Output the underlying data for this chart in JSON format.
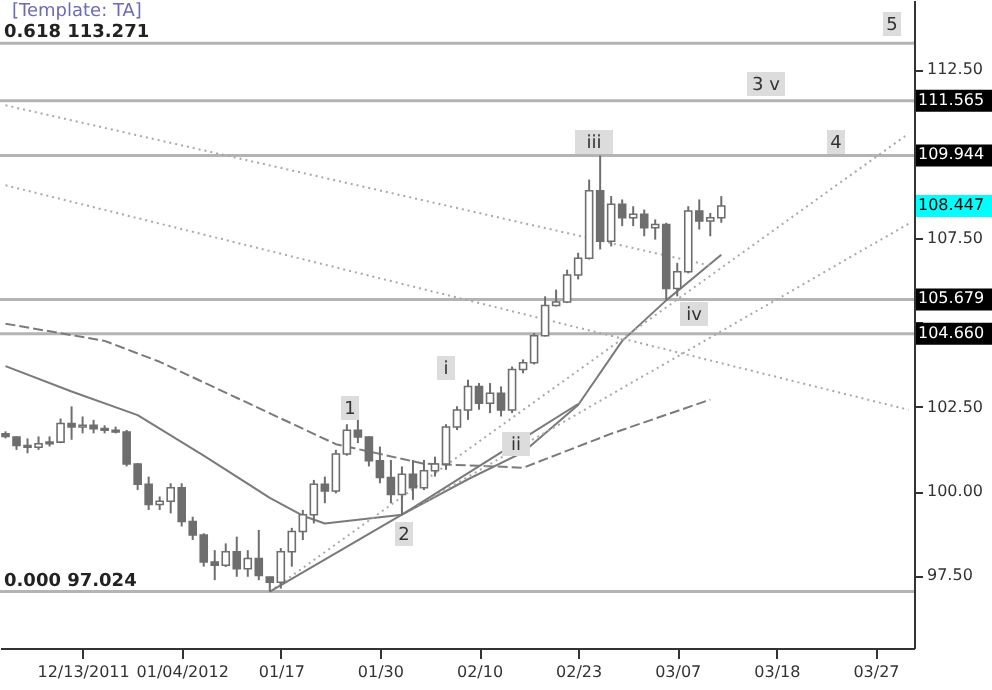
{
  "chart_data": {
    "type": "candlestick",
    "title": "[Template: TA]",
    "categories": [
      null,
      null,
      null,
      null,
      null,
      null,
      null,
      "12/13/2011",
      null,
      null,
      null,
      null,
      null,
      null,
      null,
      null,
      "01/04/2012",
      null,
      null,
      null,
      null,
      null,
      null,
      null,
      null,
      "01/17",
      null,
      null,
      null,
      null,
      null,
      null,
      null,
      null,
      "01/30",
      null,
      null,
      null,
      null,
      null,
      null,
      null,
      null,
      "02/10",
      null,
      null,
      null,
      null,
      null,
      null,
      null,
      null,
      "02/23",
      null,
      null,
      null,
      null,
      null,
      null,
      null,
      null,
      "03/07",
      null,
      null,
      null,
      null,
      null,
      null,
      null,
      null,
      "03/18",
      null,
      null,
      null,
      null,
      null,
      null,
      null,
      null,
      "03/27",
      null,
      null,
      null
    ],
    "ohlc": [
      [
        101.7,
        101.77,
        101.56,
        101.62
      ],
      [
        101.6,
        101.62,
        101.22,
        101.35
      ],
      [
        101.35,
        101.56,
        101.12,
        101.3
      ],
      [
        101.3,
        101.62,
        101.22,
        101.4
      ],
      [
        101.4,
        101.62,
        101.32,
        101.45
      ],
      [
        101.45,
        102.15,
        101.42,
        102.0
      ],
      [
        102.0,
        102.51,
        101.52,
        101.9
      ],
      [
        101.9,
        102.21,
        101.71,
        101.95
      ],
      [
        101.95,
        102.11,
        101.71,
        101.85
      ],
      [
        101.85,
        101.95,
        101.71,
        101.8
      ],
      [
        101.8,
        101.91,
        101.71,
        101.75
      ],
      [
        101.75,
        101.81,
        100.73,
        100.8
      ],
      [
        100.8,
        100.83,
        100.03,
        100.2
      ],
      [
        100.2,
        100.43,
        99.44,
        99.6
      ],
      [
        99.6,
        99.84,
        99.44,
        99.7
      ],
      [
        99.7,
        100.23,
        99.34,
        100.1
      ],
      [
        100.1,
        100.23,
        98.95,
        99.1
      ],
      [
        99.1,
        99.24,
        98.55,
        98.7
      ],
      [
        98.7,
        98.75,
        97.76,
        97.9
      ],
      [
        97.9,
        98.25,
        97.36,
        97.8
      ],
      [
        97.8,
        98.45,
        97.75,
        98.2
      ],
      [
        98.2,
        98.65,
        97.46,
        97.7
      ],
      [
        97.7,
        98.25,
        97.46,
        98.0
      ],
      [
        98.0,
        98.85,
        97.36,
        97.5
      ],
      [
        97.45,
        97.46,
        97.02,
        97.3
      ],
      [
        97.3,
        98.31,
        97.11,
        98.2
      ],
      [
        98.2,
        98.91,
        97.76,
        98.8
      ],
      [
        98.8,
        99.44,
        98.55,
        99.3
      ],
      [
        99.3,
        100.33,
        99.04,
        100.2
      ],
      [
        100.2,
        100.43,
        99.64,
        100.0
      ],
      [
        100.0,
        101.22,
        99.93,
        101.1
      ],
      [
        101.1,
        101.98,
        101.05,
        101.8
      ],
      [
        101.8,
        102.15,
        101.42,
        101.6
      ],
      [
        101.6,
        101.62,
        100.73,
        100.9
      ],
      [
        100.9,
        101.32,
        100.23,
        100.4
      ],
      [
        100.4,
        100.92,
        99.64,
        99.9
      ],
      [
        99.9,
        100.73,
        99.3,
        100.5
      ],
      [
        100.5,
        100.92,
        99.74,
        100.1
      ],
      [
        100.1,
        100.92,
        100.03,
        100.6
      ],
      [
        100.6,
        101.02,
        100.43,
        100.8
      ],
      [
        100.8,
        101.98,
        100.63,
        101.9
      ],
      [
        101.9,
        102.51,
        101.81,
        102.4
      ],
      [
        102.4,
        103.3,
        102.11,
        103.1
      ],
      [
        103.1,
        103.2,
        102.41,
        102.6
      ],
      [
        102.6,
        103.2,
        102.31,
        102.9
      ],
      [
        102.9,
        103.1,
        102.21,
        102.4
      ],
      [
        102.4,
        103.69,
        102.31,
        103.6
      ],
      [
        103.6,
        103.9,
        103.49,
        103.8
      ],
      [
        103.8,
        104.68,
        103.75,
        104.6
      ],
      [
        104.6,
        105.77,
        104.58,
        105.5
      ],
      [
        105.5,
        105.97,
        105.47,
        105.6
      ],
      [
        105.6,
        106.56,
        105.57,
        106.4
      ],
      [
        106.4,
        107.06,
        106.27,
        106.9
      ],
      [
        106.9,
        109.23,
        106.86,
        108.9
      ],
      [
        108.9,
        109.94,
        107.16,
        107.4
      ],
      [
        107.4,
        108.74,
        107.25,
        108.5
      ],
      [
        108.5,
        108.64,
        107.85,
        108.1
      ],
      [
        108.1,
        108.44,
        107.85,
        108.2
      ],
      [
        108.2,
        108.34,
        107.55,
        107.8
      ],
      [
        107.8,
        108.05,
        107.45,
        107.9
      ],
      [
        107.9,
        107.95,
        105.67,
        106.0
      ],
      [
        106.0,
        106.76,
        105.77,
        106.5
      ],
      [
        106.5,
        108.44,
        106.45,
        108.3
      ],
      [
        108.3,
        108.64,
        107.75,
        108.0
      ],
      [
        108.0,
        108.24,
        107.55,
        108.1
      ],
      [
        108.1,
        108.74,
        107.95,
        108.447
      ],
      null,
      null,
      null,
      null,
      null,
      null,
      null,
      null,
      null,
      null,
      null,
      null,
      null,
      null,
      null,
      null,
      null
    ],
    "color": "#6e6e6e",
    "series": [
      {
        "type": "line",
        "color": "#7a7a7a",
        "line_style": "solid",
        "values": [
          103.7,
          null,
          null,
          null,
          null,
          null,
          102.95,
          null,
          null,
          null,
          null,
          null,
          102.25,
          null,
          null,
          null,
          null,
          null,
          101.05,
          null,
          null,
          null,
          null,
          null,
          99.8,
          null,
          null,
          99.27,
          null,
          99.04,
          null,
          null,
          null,
          null,
          null,
          null,
          99.3,
          null,
          null,
          null,
          null,
          null,
          100.35,
          null,
          null,
          null,
          null,
          101.15,
          null,
          null,
          null,
          null,
          102.55,
          null,
          null,
          null,
          104.45,
          null,
          null,
          null,
          105.65,
          null,
          null,
          null,
          null,
          107.0,
          null,
          null,
          null,
          null,
          null,
          null,
          null,
          null,
          null,
          null,
          null,
          null,
          null,
          null,
          null,
          null,
          null
        ]
      },
      {
        "type": "line",
        "color": "#7a7a7a",
        "line_style": "dashed",
        "values": [
          104.96,
          null,
          null,
          null,
          null,
          null,
          null,
          null,
          null,
          104.45,
          null,
          null,
          null,
          null,
          103.83,
          null,
          null,
          null,
          null,
          null,
          null,
          null,
          null,
          null,
          null,
          null,
          null,
          null,
          null,
          null,
          101.39,
          null,
          null,
          null,
          null,
          null,
          null,
          null,
          100.81,
          null,
          null,
          null,
          null,
          100.75,
          null,
          null,
          null,
          100.69,
          null,
          null,
          null,
          null,
          null,
          null,
          null,
          101.7,
          null,
          null,
          null,
          null,
          null,
          null,
          null,
          null,
          102.71,
          null,
          null,
          null,
          null,
          null,
          null,
          null,
          null,
          null,
          null,
          null,
          null,
          null,
          null,
          null,
          null,
          null,
          null
        ]
      },
      {
        "type": "line",
        "color": "#a8a8a8",
        "line_style": "dotted",
        "values": [
          111.43,
          null,
          null,
          null,
          null,
          null,
          null,
          null,
          null,
          null,
          null,
          null,
          null,
          null,
          null,
          null,
          null,
          null,
          null,
          null,
          null,
          null,
          null,
          null,
          null,
          null,
          null,
          null,
          null,
          null,
          null,
          null,
          null,
          null,
          null,
          null,
          null,
          null,
          null,
          null,
          null,
          null,
          null,
          null,
          null,
          null,
          null,
          null,
          null,
          null,
          null,
          null,
          null,
          null,
          null,
          null,
          null,
          null,
          null,
          null,
          null,
          null,
          null,
          null,
          106.68,
          null,
          null,
          null,
          null,
          null,
          null,
          null,
          null,
          null,
          null,
          null,
          null,
          null,
          null,
          null,
          null,
          null,
          null
        ]
      },
      {
        "type": "line",
        "color": "#a8a8a8",
        "line_style": "dotted",
        "values": [
          109.06,
          null,
          null,
          null,
          null,
          null,
          null,
          null,
          null,
          null,
          null,
          null,
          null,
          null,
          null,
          null,
          null,
          null,
          null,
          null,
          null,
          null,
          null,
          null,
          null,
          null,
          null,
          null,
          null,
          null,
          null,
          null,
          null,
          null,
          null,
          null,
          null,
          null,
          null,
          null,
          null,
          null,
          null,
          null,
          null,
          null,
          null,
          null,
          null,
          null,
          null,
          null,
          null,
          null,
          null,
          null,
          null,
          null,
          null,
          null,
          null,
          null,
          null,
          null,
          null,
          null,
          null,
          null,
          null,
          null,
          null,
          null,
          null,
          null,
          null,
          null,
          null,
          null,
          null,
          null,
          null,
          null,
          102.41
        ]
      },
      {
        "type": "line",
        "color": "#a8a8a8",
        "line_style": "dotted",
        "values": [
          null,
          null,
          null,
          null,
          null,
          null,
          null,
          null,
          null,
          null,
          null,
          null,
          null,
          null,
          null,
          null,
          null,
          null,
          null,
          null,
          null,
          null,
          null,
          null,
          97.02,
          null,
          null,
          null,
          null,
          null,
          null,
          null,
          null,
          null,
          null,
          null,
          null,
          null,
          null,
          null,
          null,
          null,
          null,
          null,
          null,
          null,
          null,
          null,
          null,
          null,
          null,
          null,
          null,
          null,
          null,
          null,
          null,
          null,
          null,
          null,
          null,
          null,
          null,
          null,
          null,
          null,
          null,
          null,
          null,
          null,
          null,
          null,
          null,
          null,
          null,
          null,
          null,
          null,
          null,
          null,
          null,
          null,
          110.59
        ]
      },
      {
        "type": "line",
        "color": "#a8a8a8",
        "line_style": "dotted",
        "values": [
          null,
          null,
          null,
          null,
          null,
          null,
          null,
          null,
          null,
          null,
          null,
          null,
          null,
          null,
          null,
          null,
          null,
          null,
          null,
          null,
          null,
          null,
          null,
          null,
          null,
          null,
          null,
          null,
          null,
          null,
          null,
          null,
          null,
          null,
          null,
          null,
          99.3,
          null,
          null,
          null,
          null,
          null,
          null,
          null,
          null,
          null,
          null,
          null,
          null,
          null,
          null,
          null,
          null,
          null,
          null,
          null,
          null,
          null,
          null,
          null,
          null,
          null,
          null,
          null,
          null,
          null,
          null,
          null,
          null,
          null,
          null,
          null,
          null,
          null,
          null,
          null,
          null,
          null,
          null,
          null,
          null,
          null,
          107.92
        ]
      },
      {
        "type": "line",
        "color": "#7a7a7a",
        "line_style": "solid",
        "values": [
          null,
          null,
          null,
          null,
          null,
          null,
          null,
          null,
          null,
          null,
          null,
          null,
          null,
          null,
          null,
          null,
          null,
          null,
          null,
          null,
          null,
          null,
          null,
          null,
          97.02,
          null,
          null,
          null,
          null,
          null,
          null,
          null,
          null,
          null,
          null,
          null,
          99.3,
          null,
          null,
          null,
          null,
          null,
          null,
          null,
          null,
          null,
          null,
          null,
          null,
          null,
          null,
          null,
          102.58,
          null,
          null,
          null,
          null,
          null,
          null,
          null,
          null,
          null,
          null,
          null,
          null,
          null,
          null,
          null,
          null,
          null,
          null,
          null,
          null,
          null,
          null,
          null,
          null,
          null,
          null,
          null,
          null,
          null,
          null
        ]
      }
    ],
    "ylim": [
      95.35,
      114.55
    ],
    "yticks": [
      {
        "value": 97.5,
        "label": "97.50"
      },
      {
        "value": 100,
        "label": "100.00"
      },
      {
        "value": 102.5,
        "label": "102.50"
      },
      {
        "value": 105,
        "label": null
      },
      {
        "value": 107.5,
        "label": "107.50"
      },
      {
        "value": 112.5,
        "label": "112.50"
      },
      {
        "value": 104.66,
        "label": "104.660"
      },
      105.679,
      108.447,
      109.944,
      111.565
    ],
    "ref_lines": [
      {
        "axis": "y",
        "value": 113.271,
        "label": "0.618 113.271",
        "color": "#b4b4b4"
      },
      {
        "axis": "y",
        "value": 111.565,
        "color": "#b4b4b4"
      },
      {
        "axis": "y",
        "value": 109.944,
        "color": "#b4b4b4"
      },
      {
        "axis": "y",
        "value": 105.679,
        "color": "#b4b4b4"
      },
      {
        "axis": "y",
        "value": 104.66,
        "color": "#b4b4b4"
      },
      {
        "axis": "y",
        "value": 97.024,
        "label": "0.000 97.024",
        "color": "#b4b4b4"
      }
    ],
    "annotations": [
      "1",
      "2",
      "i",
      "ii",
      "iii",
      "iv",
      "3 v",
      "4",
      "5"
    ]
  }
}
